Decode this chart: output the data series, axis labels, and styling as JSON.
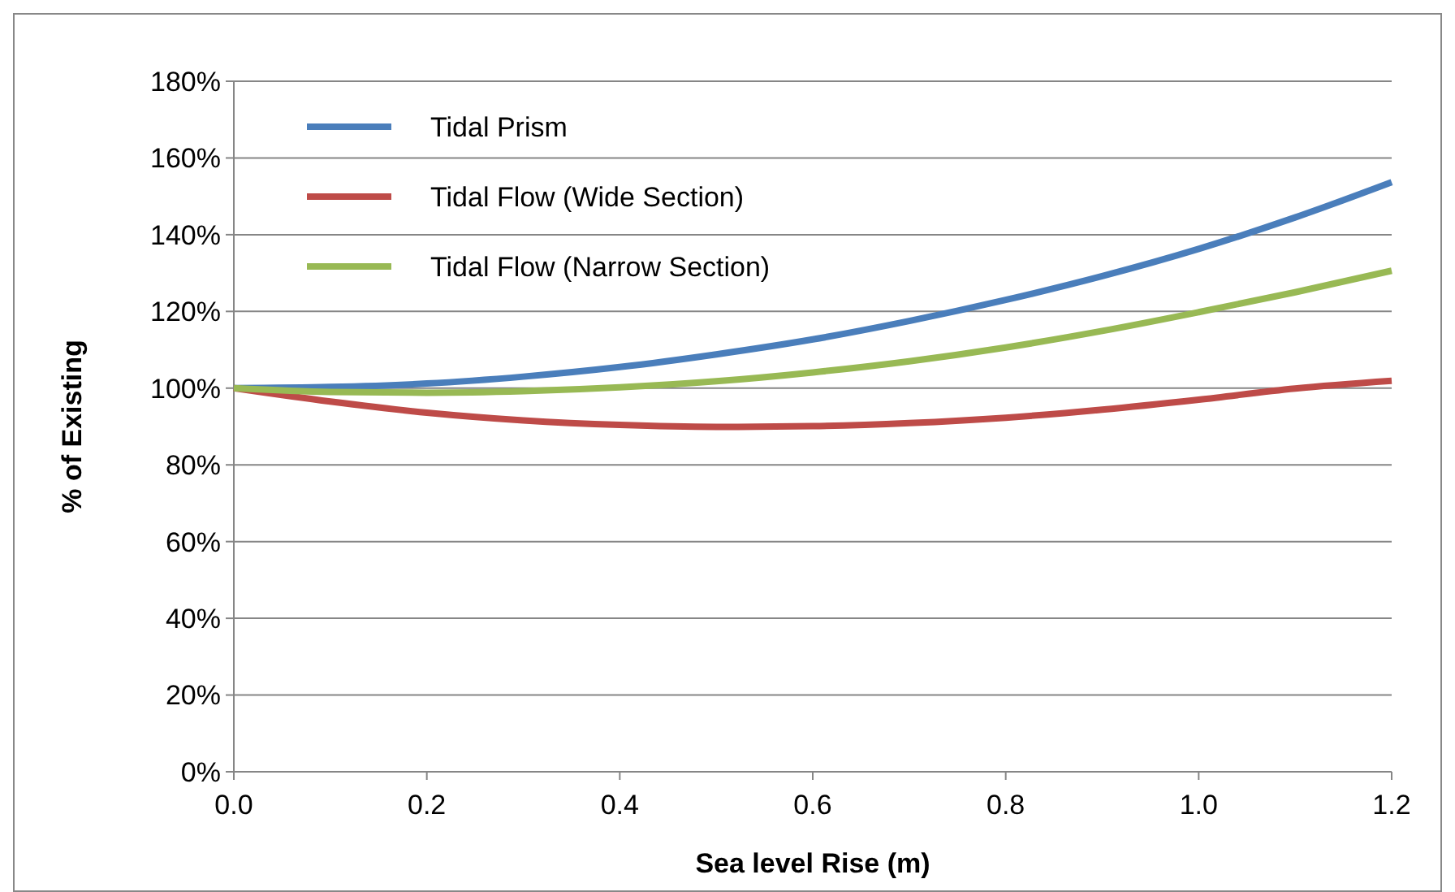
{
  "chart_data": {
    "type": "line",
    "xlabel": "Sea level Rise (m)",
    "ylabel": "% of Existing",
    "x": [
      0,
      0.1,
      0.2,
      0.3,
      0.4,
      0.5,
      0.6,
      0.7,
      0.8,
      0.9,
      1.0,
      1.1,
      1.2
    ],
    "series": [
      {
        "name": "Tidal Prism",
        "color": "#4a7ebb",
        "values": [
          100,
          100.3,
          101.2,
          103,
          105.5,
          108.8,
          112.7,
          117.5,
          123,
          129.2,
          136.3,
          144.5,
          153.7
        ]
      },
      {
        "name": "Tidal Flow (Wide Section)",
        "color": "#be4b48",
        "values": [
          100,
          96.5,
          93.6,
          91.6,
          90.4,
          89.9,
          90.1,
          90.9,
          92.3,
          94.4,
          97,
          99.9,
          101.9
        ]
      },
      {
        "name": "Tidal Flow (Narrow Section)",
        "color": "#98b954",
        "values": [
          100,
          99,
          98.8,
          99.2,
          100.2,
          101.8,
          104.1,
          107,
          110.6,
          114.9,
          119.8,
          125,
          130.6
        ]
      }
    ],
    "xlim": [
      0,
      1.2
    ],
    "xticks": [
      {
        "value": 0,
        "label": "0.0"
      },
      0.2,
      0.4,
      0.6,
      0.8,
      {
        "value": 1,
        "label": "1.0"
      },
      1.2
    ],
    "ylim": [
      0,
      180
    ],
    "yticks": [
      {
        "value": 0,
        "label": "0%"
      },
      {
        "value": 20,
        "label": "20%"
      },
      {
        "value": 40,
        "label": "40%"
      },
      {
        "value": 60,
        "label": "60%"
      },
      {
        "value": 80,
        "label": "80%"
      },
      {
        "value": 100,
        "label": "100%"
      },
      {
        "value": 120,
        "label": "120%"
      },
      {
        "value": 140,
        "label": "140%"
      },
      {
        "value": 160,
        "label": "160%"
      },
      {
        "value": 180,
        "label": "180%"
      }
    ],
    "grid": "y",
    "legend": "top left",
    "line_style": "solid",
    "marker": "none"
  }
}
